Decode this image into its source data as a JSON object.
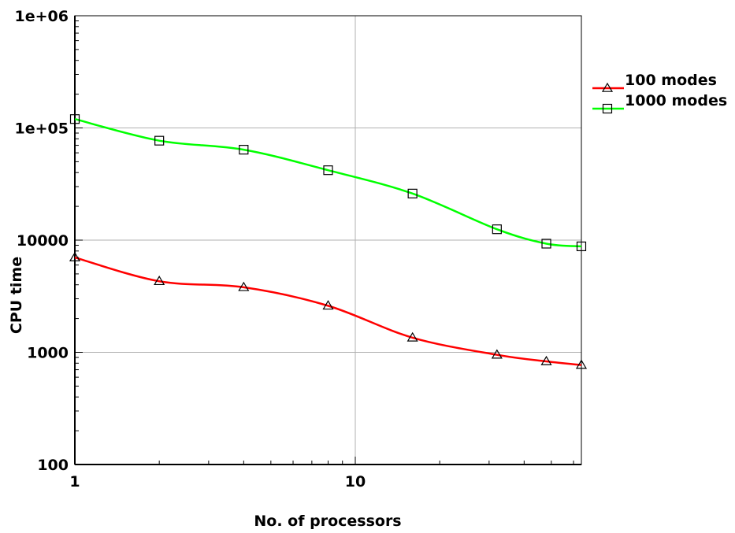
{
  "chart_data": {
    "type": "line",
    "xlabel": "No. of processors",
    "ylabel": "CPU time",
    "xscale": "log",
    "yscale": "log",
    "xlim": [
      1,
      64
    ],
    "ylim": [
      100,
      1000000
    ],
    "grid": true,
    "legend_position": "top-right, outside plot",
    "x_ticks": [
      1,
      10
    ],
    "x_tick_labels": [
      "1",
      "10"
    ],
    "y_ticks": [
      100,
      1000,
      10000,
      100000,
      1000000
    ],
    "y_tick_labels": [
      "100",
      "1000",
      "10000",
      "1e+05",
      "1e+06"
    ],
    "x": [
      1,
      2,
      4,
      8,
      16,
      32,
      48,
      64
    ],
    "series": [
      {
        "name": "100 modes",
        "color": "#ff0000",
        "marker": "triangle",
        "values": [
          7000,
          4300,
          3800,
          2600,
          1350,
          950,
          830,
          770
        ]
      },
      {
        "name": "1000 modes",
        "color": "#00ff00",
        "marker": "square",
        "values": [
          120000,
          77000,
          64000,
          42000,
          26000,
          12500,
          9300,
          8800
        ]
      }
    ]
  }
}
